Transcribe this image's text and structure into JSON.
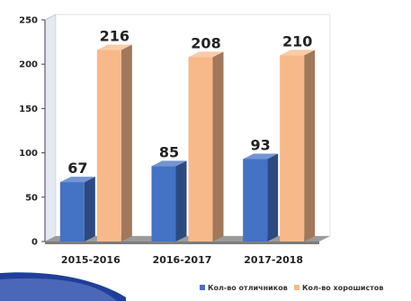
{
  "chart_data": {
    "type": "bar",
    "title": "",
    "xlabel": "",
    "ylabel": "",
    "categories": [
      "2015-2016",
      "2016-2017",
      "2017-2018"
    ],
    "series": [
      {
        "name": "Кол-во отличников",
        "values": [
          67,
          85,
          93
        ],
        "color": "#4472c4"
      },
      {
        "name": "Кол-во хорошистов",
        "values": [
          216,
          208,
          210
        ],
        "color": "#f8b98a"
      }
    ],
    "ylim": [
      0,
      250
    ],
    "yticks": [
      0,
      50,
      100,
      150,
      200,
      250
    ],
    "grid": false,
    "legend_position": "bottom-right",
    "style": "3d-bars"
  }
}
